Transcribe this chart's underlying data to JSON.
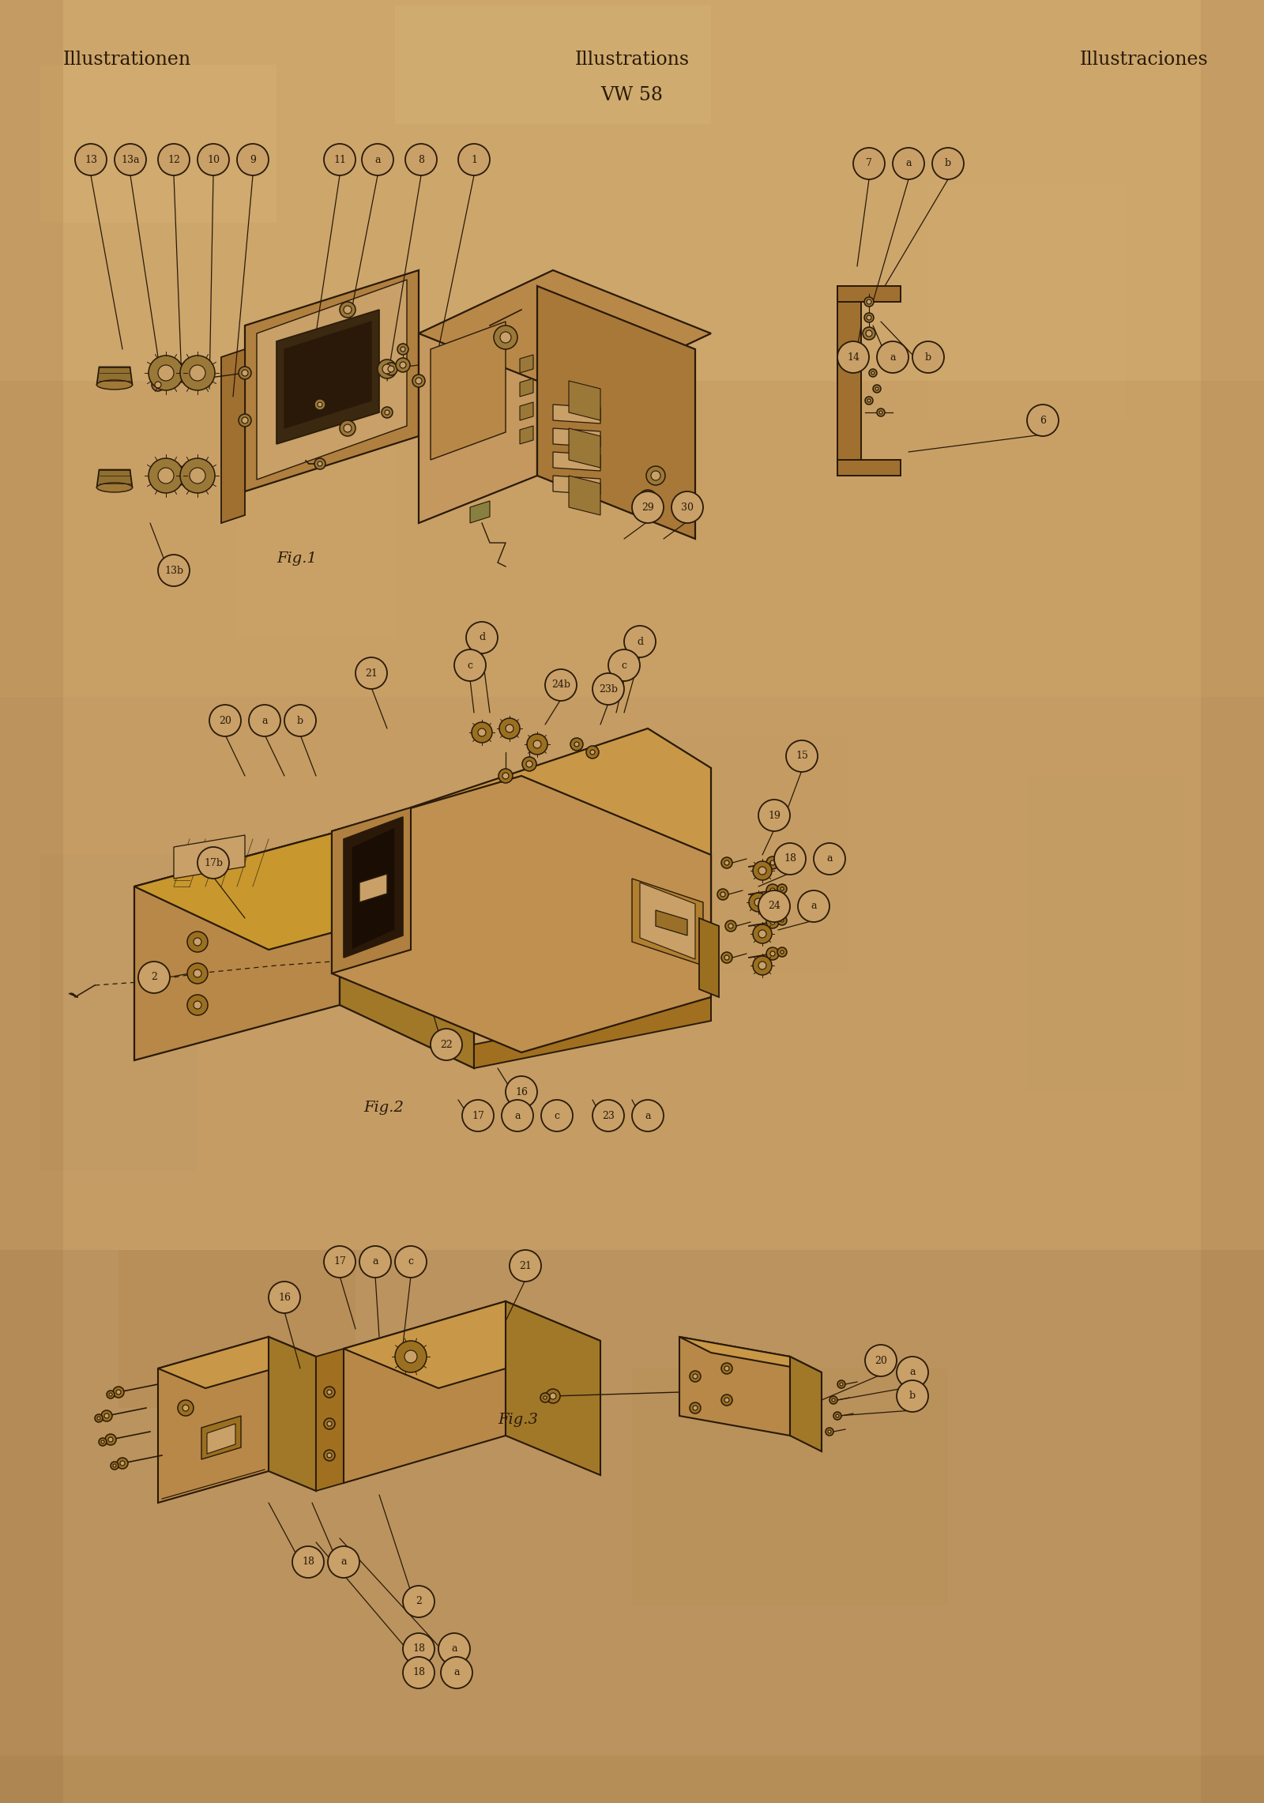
{
  "bg_color": "#c8a068",
  "line_color": "#2a1a08",
  "title_left": "Illustrationen",
  "title_center": "Illustrations",
  "subtitle_center": "VW 58",
  "title_right": "Illustraciones",
  "fig1_label": "Fig.1",
  "fig2_label": "Fig.2",
  "fig3_label": "Fig.3"
}
